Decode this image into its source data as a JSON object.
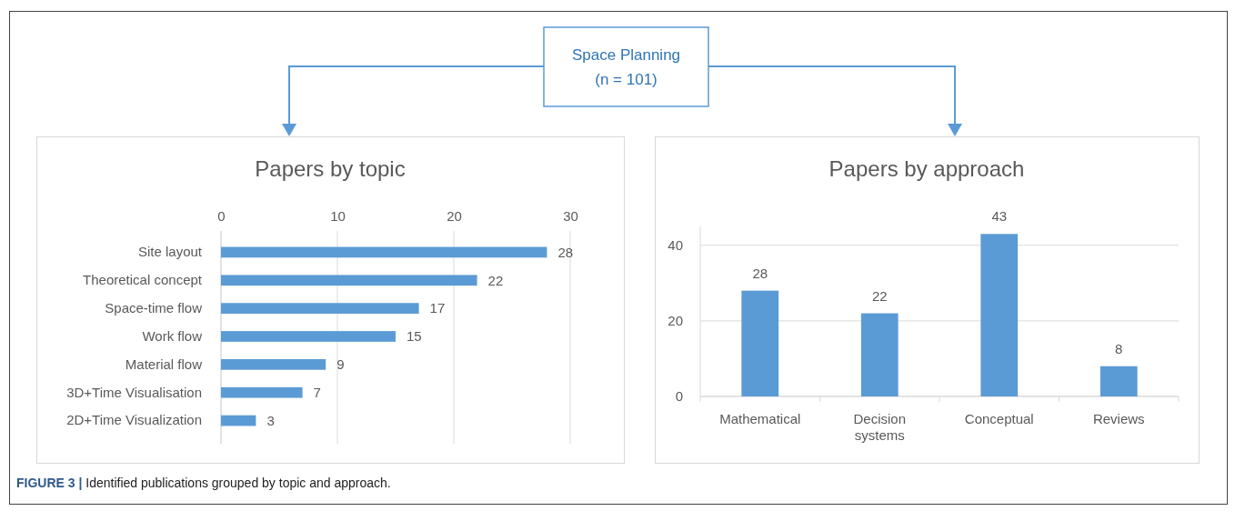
{
  "chart_data": [
    {
      "type": "bar",
      "orientation": "horizontal",
      "title": "Papers by topic",
      "categories": [
        "Site layout",
        "Theoretical concept",
        "Space-time flow",
        "Work flow",
        "Material flow",
        "3D+Time Visualisation",
        "2D+Time Visualization"
      ],
      "values": [
        28,
        22,
        17,
        15,
        9,
        7,
        3
      ],
      "color": "#5b9bd5",
      "xlim": [
        0,
        30
      ],
      "xticks": [
        0,
        10,
        20,
        30
      ],
      "grid": "x",
      "data_labels": true
    },
    {
      "type": "bar",
      "title": "Papers by approach",
      "categories": [
        "Mathematical",
        "Decision systems",
        "Conceptual",
        "Reviews"
      ],
      "values": [
        28,
        22,
        43,
        8
      ],
      "color": "#5b9bd5",
      "ylim": [
        0,
        45
      ],
      "yticks": [
        0,
        20,
        40
      ],
      "grid": "y",
      "data_labels": true
    },
    {
      "type": "other",
      "title": "Space Planning",
      "subtitle": "(n = 101)",
      "annotations": [
        "FIGURE 3 |",
        "Identified publications grouped by topic and approach."
      ]
    }
  ]
}
